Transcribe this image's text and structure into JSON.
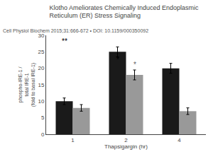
{
  "chart_data": {
    "type": "bar",
    "title": "Klotho Ameliorates Chemically Induced Endoplasmic Reticulum (ER) Stress Signaling",
    "subtitle": "Cell Physiol Biochem 2015;31:666-672 • DOI: 10.1159/000350092",
    "categories": [
      "1",
      "2",
      "4"
    ],
    "series": [
      {
        "color": "#1a1a1a",
        "values": [
          10,
          25,
          20
        ],
        "errors": [
          1.0,
          1.5,
          1.5
        ]
      },
      {
        "color": "#999999",
        "values": [
          8,
          18,
          7
        ],
        "errors": [
          1.0,
          1.5,
          1.0
        ]
      }
    ],
    "xlabel": "Thapsigargin (hr)",
    "ylabel": "phospho-IRE-1 /\ntotal IRE-1\n(fold to basal IRE-1)",
    "ylim": [
      0,
      30
    ],
    "yticks": [
      0,
      5,
      10,
      15,
      20,
      25,
      30
    ],
    "grid": false,
    "annotations": [
      {
        "text": "**",
        "category": "1",
        "series": 0,
        "y": 26.5,
        "color": "#000000"
      },
      {
        "text": "*",
        "category": "2",
        "series": 0,
        "y": 21.0,
        "color": "#000000"
      },
      {
        "text": "*",
        "category": "2",
        "series": 1,
        "y": 19.5,
        "color": "#666666"
      }
    ]
  }
}
